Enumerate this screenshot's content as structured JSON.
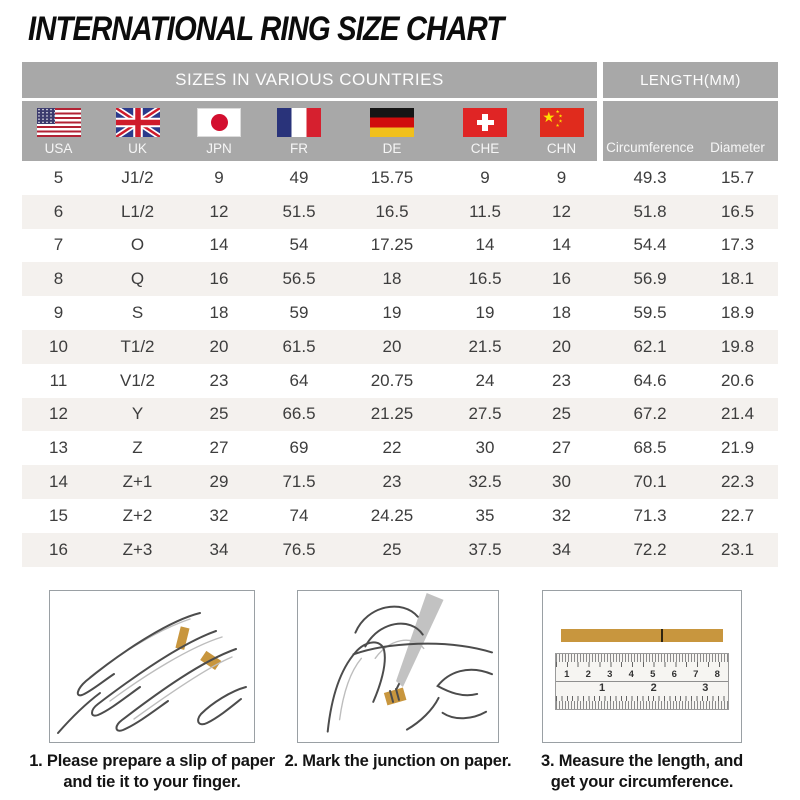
{
  "title": "INTERNATIONAL RING SIZE CHART",
  "table": {
    "group_headers": {
      "countries": "SIZES IN VARIOUS COUNTRIES",
      "length": "LENGTH(MM)"
    },
    "country_columns": [
      {
        "code": "USA",
        "flag": "usa-flag"
      },
      {
        "code": "UK",
        "flag": "uk-flag"
      },
      {
        "code": "JPN",
        "flag": "japan-flag"
      },
      {
        "code": "FR",
        "flag": "france-flag"
      },
      {
        "code": "DE",
        "flag": "germany-flag"
      },
      {
        "code": "CHE",
        "flag": "switzerland-flag"
      },
      {
        "code": "CHN",
        "flag": "china-flag"
      }
    ],
    "length_columns": [
      "Circumference",
      "Diameter"
    ],
    "rows": [
      [
        "5",
        "J1/2",
        "9",
        "49",
        "15.75",
        "9",
        "9",
        "49.3",
        "15.7"
      ],
      [
        "6",
        "L1/2",
        "12",
        "51.5",
        "16.5",
        "11.5",
        "12",
        "51.8",
        "16.5"
      ],
      [
        "7",
        "O",
        "14",
        "54",
        "17.25",
        "14",
        "14",
        "54.4",
        "17.3"
      ],
      [
        "8",
        "Q",
        "16",
        "56.5",
        "18",
        "16.5",
        "16",
        "56.9",
        "18.1"
      ],
      [
        "9",
        "S",
        "18",
        "59",
        "19",
        "19",
        "18",
        "59.5",
        "18.9"
      ],
      [
        "10",
        "T1/2",
        "20",
        "61.5",
        "20",
        "21.5",
        "20",
        "62.1",
        "19.8"
      ],
      [
        "11",
        "V1/2",
        "23",
        "64",
        "20.75",
        "24",
        "23",
        "64.6",
        "20.6"
      ],
      [
        "12",
        "Y",
        "25",
        "66.5",
        "21.25",
        "27.5",
        "25",
        "67.2",
        "21.4"
      ],
      [
        "13",
        "Z",
        "27",
        "69",
        "22",
        "30",
        "27",
        "68.5",
        "21.9"
      ],
      [
        "14",
        "Z+1",
        "29",
        "71.5",
        "23",
        "32.5",
        "30",
        "70.1",
        "22.3"
      ],
      [
        "15",
        "Z+2",
        "32",
        "74",
        "24.25",
        "35",
        "32",
        "71.3",
        "22.7"
      ],
      [
        "16",
        "Z+3",
        "34",
        "76.5",
        "25",
        "37.5",
        "34",
        "72.2",
        "23.1"
      ]
    ]
  },
  "instructions": [
    {
      "step": "1",
      "caption_line1": "1. Please prepare a slip of paper",
      "caption_line2": "and tie it to your finger."
    },
    {
      "step": "2",
      "caption_line1": "2. Mark the junction on paper.",
      "caption_line2": ""
    },
    {
      "step": "3",
      "caption_line1": "3. Measure the length, and",
      "caption_line2": "get your circumference."
    }
  ],
  "ruler": {
    "cm_numbers": [
      "1",
      "2",
      "3",
      "4",
      "5",
      "6",
      "7",
      "8"
    ],
    "inch_numbers": [
      "1",
      "2",
      "3"
    ]
  },
  "colors": {
    "header_gray": "#a8a8a8",
    "row_stripe": "#f4f1ee",
    "data_text": "#3d3d3d",
    "gold_strip": "#c8963e"
  }
}
